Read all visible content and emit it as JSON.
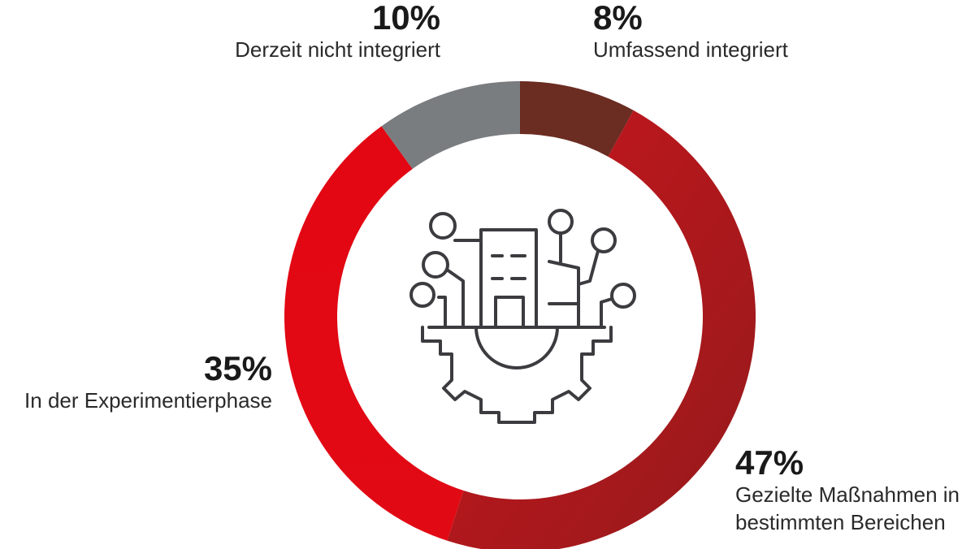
{
  "chart_data": {
    "type": "pie",
    "variant": "donut",
    "start": "top, clockwise",
    "slices": [
      {
        "label": "Umfassend integriert",
        "value": 8,
        "display": "8%",
        "color": "#6b2c22"
      },
      {
        "label": "Gezielte Maßnahmen in bestimmten Bereichen",
        "value": 47,
        "display": "47%",
        "color": "#b51a1d"
      },
      {
        "label": "In der Experimentierphase",
        "value": 35,
        "display": "35%",
        "color": "#e30613"
      },
      {
        "label": "Derzeit nicht integriert",
        "value": 10,
        "display": "10%",
        "color": "#7a7d80"
      }
    ],
    "center_icon": "building-gear-network-icon"
  },
  "callouts": [
    {
      "pct": "8%",
      "label": "Umfassend integriert"
    },
    {
      "pct": "47%",
      "label": "Gezielte Maßnahmen in bestimmten Bereichen"
    },
    {
      "pct": "35%",
      "label": "In der Experimentierphase"
    },
    {
      "pct": "10%",
      "label": "Derzeit nicht integriert"
    }
  ]
}
